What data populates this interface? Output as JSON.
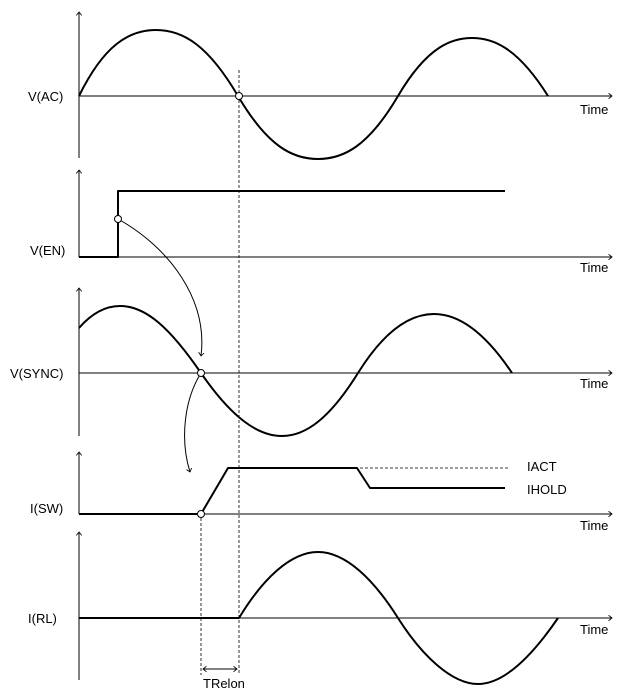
{
  "signals": [
    {
      "key": "vac",
      "label": "V(AC)",
      "axis_label": "Time"
    },
    {
      "key": "ven",
      "label": "V(EN)",
      "axis_label": "Time"
    },
    {
      "key": "vsync",
      "label": "V(SYNC)",
      "axis_label": "Time"
    },
    {
      "key": "isw",
      "label": "I(SW)",
      "axis_label": "Time"
    },
    {
      "key": "irl",
      "label": "I(RL)",
      "axis_label": "Time"
    }
  ],
  "annotations": {
    "iact": "IACT",
    "ihold": "IHOLD",
    "trelon": "TRelon"
  },
  "colors": {
    "line": "#000000",
    "background": "#ffffff"
  }
}
